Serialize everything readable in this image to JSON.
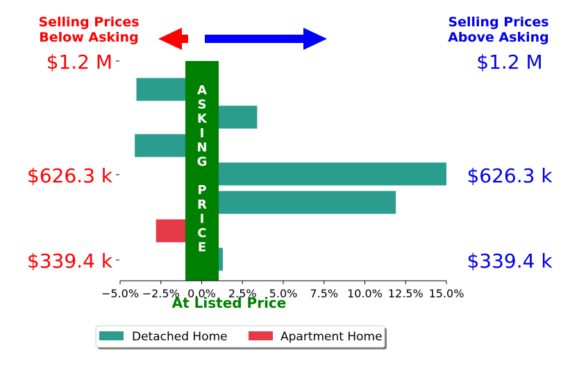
{
  "colors": {
    "detached": "#2a9d8f",
    "apartment": "#e63946",
    "asking_band": "#008000",
    "below": "#ff0000",
    "above": "#0000ee",
    "below_arrow": "#ff0000",
    "above_arrow": "#0000ff"
  },
  "header": {
    "below_line1": "Selling Prices",
    "below_line2": "Below Asking",
    "above_line1": "Selling Prices",
    "above_line2": "Above Asking"
  },
  "center_band": {
    "letters": [
      "A",
      "S",
      "K",
      "I",
      "N",
      "G",
      "",
      "P",
      "R",
      "I",
      "C",
      "E"
    ]
  },
  "legend": {
    "detached_label": "Detached Home",
    "apartment_label": "Apartment Home"
  },
  "chart_data": {
    "type": "bar",
    "orientation": "horizontal",
    "xlabel": "At Listed Price",
    "xlim": [
      -5,
      15
    ],
    "xticks": [
      -5,
      -2.5,
      0,
      2.5,
      5,
      7.5,
      10,
      12.5,
      15
    ],
    "xtick_labels": [
      "−5.0%",
      "−2.5%",
      "0.0%",
      "2.5%",
      "5.0%",
      "7.5%",
      "10.0%",
      "12.5%",
      "15.0%"
    ],
    "y_ticks_left": [
      "$1.2 M",
      "$626.3 k",
      "$339.4 k"
    ],
    "y_ticks_right": [
      "$1.2 M",
      "$626.3 k",
      "$339.4 k"
    ],
    "series": [
      {
        "name": "Detached Home",
        "values": [
          -4.0,
          3.4,
          -4.1,
          15.0,
          11.9,
          null,
          1.3
        ]
      },
      {
        "name": "Apartment Home",
        "values": [
          null,
          null,
          null,
          null,
          null,
          -2.8,
          null
        ]
      }
    ],
    "legend_position": "bottom"
  }
}
